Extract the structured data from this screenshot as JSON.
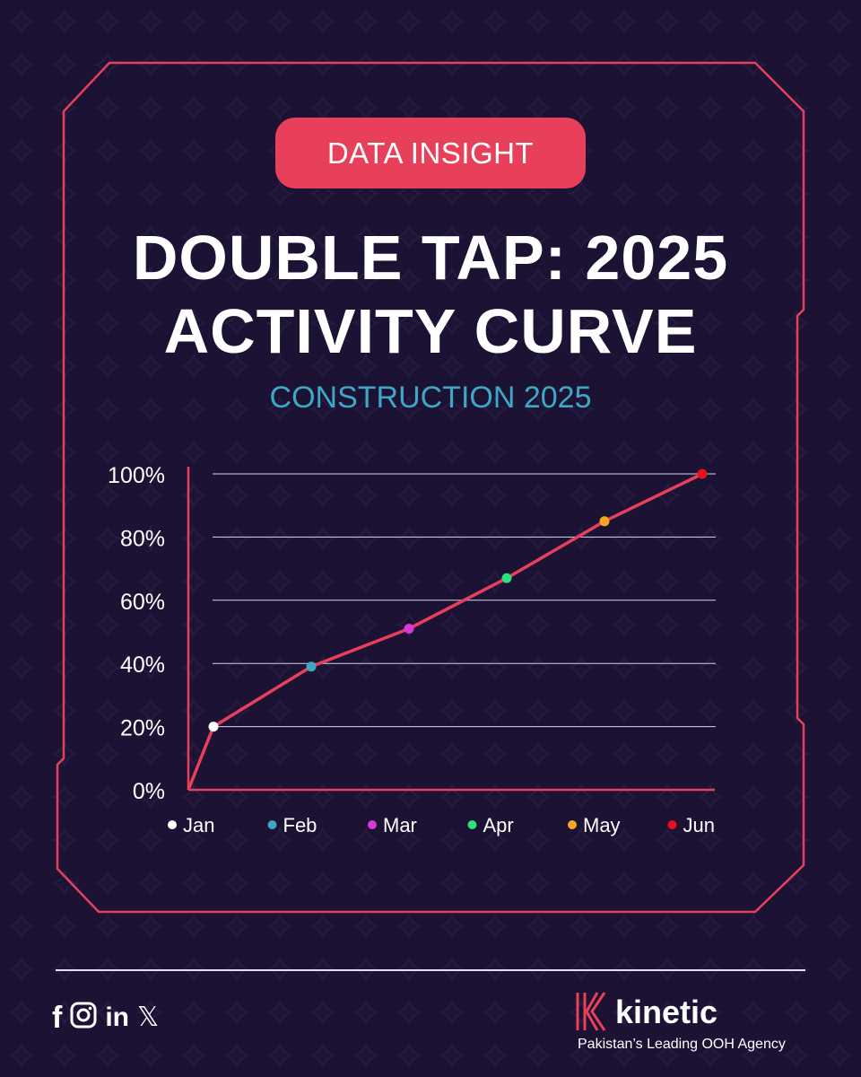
{
  "badge": "DATA INSIGHT",
  "title": {
    "line1": "DOUBLE TAP: 2025",
    "line2": "ACTIVITY CURVE"
  },
  "subtitle": "CONSTRUCTION 2025",
  "colors": {
    "background": "#1c1234",
    "accent": "#e8405a",
    "subtitle": "#3fa6c4",
    "text": "#ffffff"
  },
  "chart_data": {
    "type": "line",
    "title": "CONSTRUCTION 2025",
    "ylim": [
      0,
      100
    ],
    "yticks": [
      0,
      20,
      40,
      60,
      80,
      100
    ],
    "ytick_labels": [
      "0%",
      "20%",
      "40%",
      "60%",
      "80%",
      "100%"
    ],
    "start_value": 0,
    "categories": [
      "Jan",
      "Feb",
      "Mar",
      "Apr",
      "May",
      "Jun"
    ],
    "values": [
      20,
      39,
      51,
      67,
      85,
      100
    ],
    "point_colors": [
      "#ffffff",
      "#3fa6c4",
      "#d63ad6",
      "#2ee07c",
      "#f5a623",
      "#e8101c"
    ],
    "line_color": "#e8405a",
    "grid": true,
    "legend": "bottom"
  },
  "social": {
    "facebook": "f",
    "instagram": "instagram-icon",
    "linkedin": "in",
    "x": "𝕏"
  },
  "brand": {
    "name": "kinetic",
    "tagline": "Pakistan’s Leading OOH Agency"
  }
}
